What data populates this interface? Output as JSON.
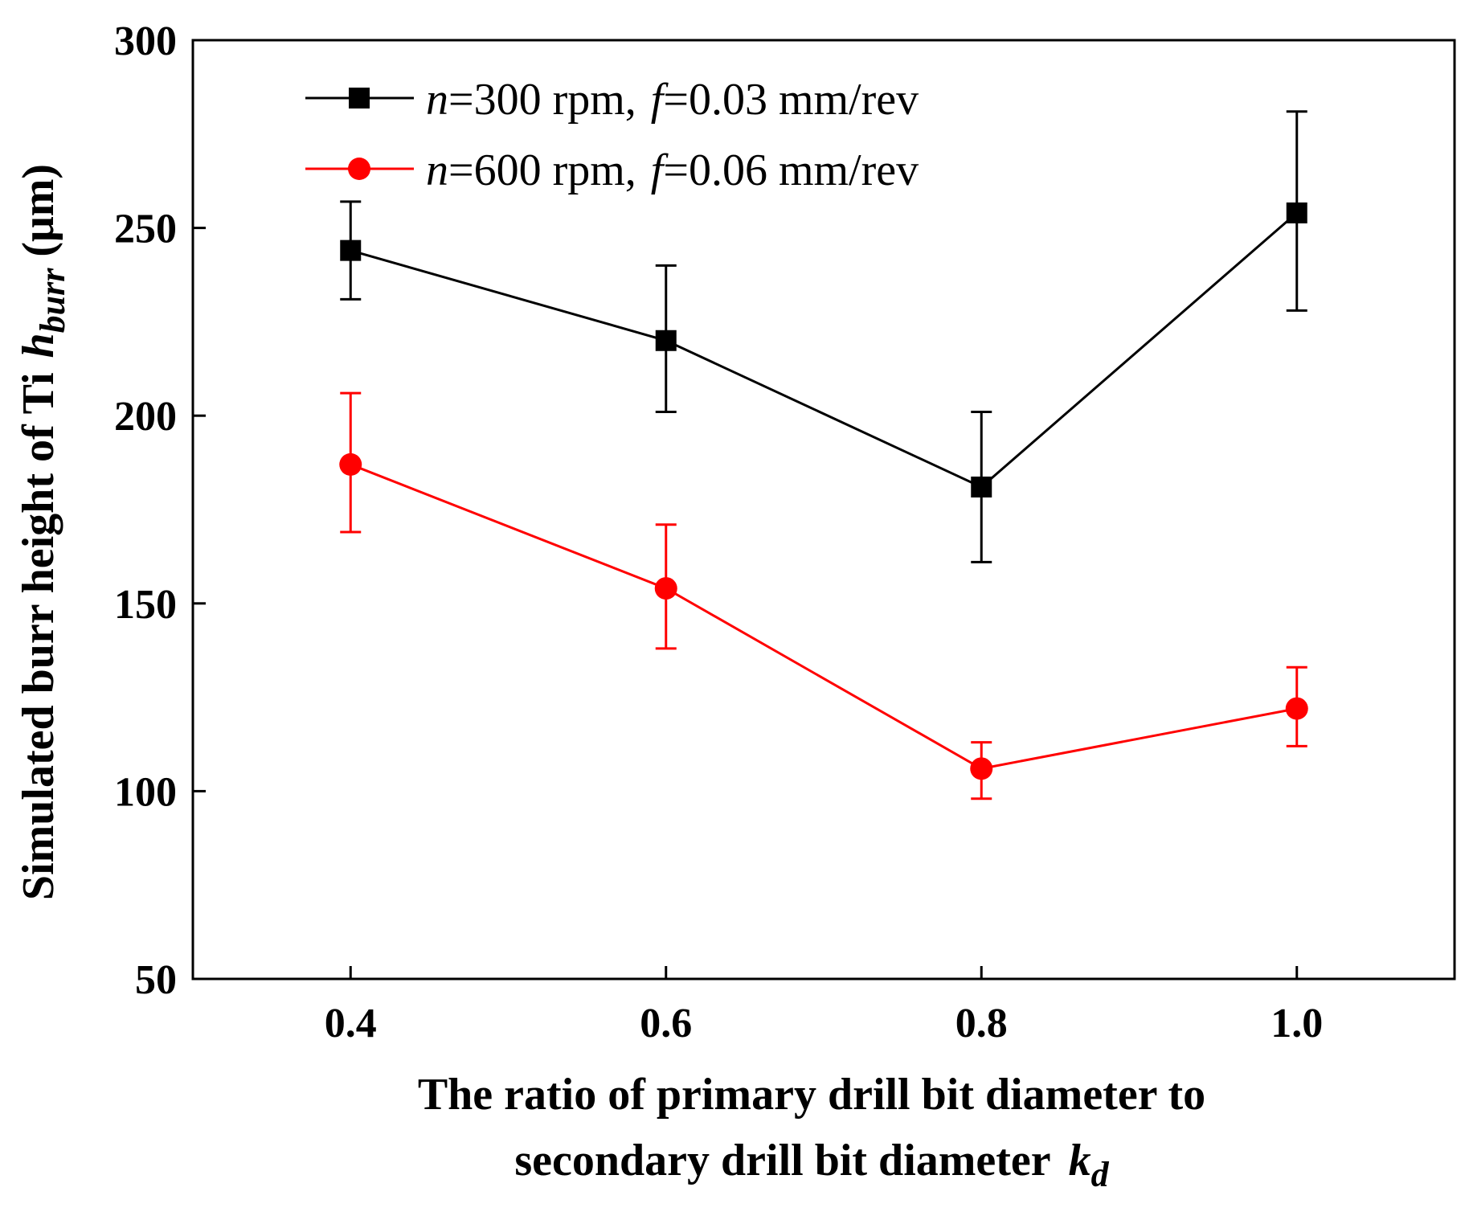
{
  "chart_data": {
    "type": "line",
    "x": [
      0.4,
      0.6,
      0.8,
      1.0
    ],
    "x_tick_labels": [
      "0.4",
      "0.6",
      "0.8",
      "1.0"
    ],
    "y_ticks": [
      50,
      100,
      150,
      200,
      250,
      300
    ],
    "y_tick_labels": [
      "50",
      "100",
      "150",
      "200",
      "250",
      "300"
    ],
    "xlim": [
      0.3,
      1.1
    ],
    "ylim": [
      50,
      300
    ],
    "grid": false,
    "legend_position": "top-left",
    "xlabel": {
      "line1": "The ratio of primary drill bit diameter to",
      "line2": "secondary drill bit diameter",
      "symbol": "k",
      "subscript": "d"
    },
    "ylabel": {
      "text": "Simulated burr height of Ti",
      "symbol": "h",
      "subscript": "burr",
      "unit": "(μm)"
    },
    "series": [
      {
        "name": "n=300 rpm, f=0.03 mm/rev",
        "legend": {
          "n_sym": "n",
          "n_rest": "=300 rpm,",
          "f_sym": "f",
          "f_rest": "=0.03 mm/rev"
        },
        "color": "#000000",
        "marker": "square",
        "values": [
          244,
          220,
          181,
          254
        ],
        "err_lower": [
          231,
          201,
          161,
          228
        ],
        "err_upper": [
          257,
          240,
          201,
          281
        ]
      },
      {
        "name": "n=600 rpm, f=0.06 mm/rev",
        "legend": {
          "n_sym": "n",
          "n_rest": "=600 rpm,",
          "f_sym": "f",
          "f_rest": "=0.06 mm/rev"
        },
        "color": "#ff0000",
        "marker": "circle",
        "values": [
          187,
          154,
          106,
          122
        ],
        "err_lower": [
          169,
          138,
          98,
          112
        ],
        "err_upper": [
          206,
          171,
          113,
          133
        ]
      }
    ]
  }
}
